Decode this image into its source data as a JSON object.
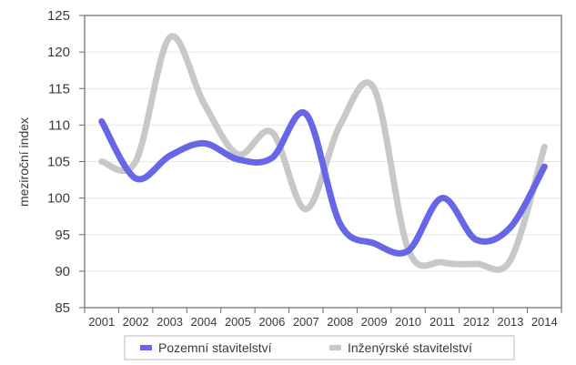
{
  "chart_data": {
    "type": "line",
    "title": "",
    "xlabel": "",
    "ylabel": "meziroční index",
    "categories": [
      "2001",
      "2002",
      "2003",
      "2004",
      "2005",
      "2006",
      "2007",
      "2008",
      "2009",
      "2010",
      "2011",
      "2012",
      "2013",
      "2014"
    ],
    "ylim": [
      85,
      125
    ],
    "yticks": [
      85,
      90,
      95,
      100,
      105,
      110,
      115,
      120,
      125
    ],
    "grid": true,
    "legend_position": "bottom",
    "series": [
      {
        "name": "Pozemní stavitelství",
        "color": "#6666e6",
        "values": [
          110.5,
          102.7,
          105.8,
          107.5,
          105.3,
          105.5,
          111.5,
          96.5,
          93.8,
          92.8,
          100.0,
          94.3,
          96.0,
          104.3
        ]
      },
      {
        "name": "Inženýrské stavitelství",
        "color": "#c8c8c8",
        "values": [
          105.0,
          105.0,
          122.0,
          113.0,
          106.0,
          109.0,
          98.5,
          110.0,
          115.0,
          93.0,
          91.2,
          91.0,
          91.5,
          107.0
        ]
      }
    ]
  }
}
